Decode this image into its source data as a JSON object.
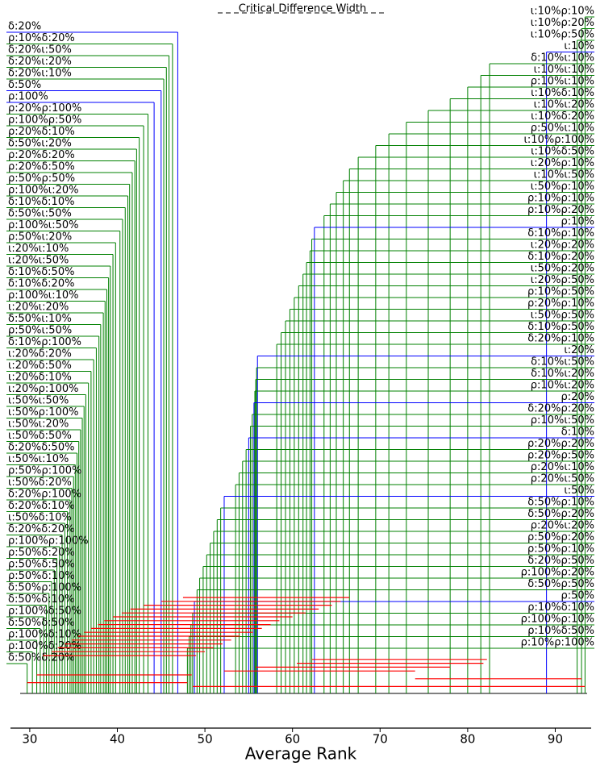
{
  "chart_data": {
    "type": "critical_difference",
    "title": "Critical Difference Width",
    "xlabel": "Average Rank",
    "xlim": [
      27.8,
      94.1
    ],
    "xticks": [
      30,
      40,
      50,
      60,
      70,
      80,
      90
    ],
    "left": [
      {
        "label": "δ:20%",
        "rank": 46.9,
        "color": "blue"
      },
      {
        "label": "ρ:10%δ:20%",
        "rank": 46.3,
        "color": "green"
      },
      {
        "label": "δ:20%ι:50%",
        "rank": 45.9,
        "color": "green"
      },
      {
        "label": "δ:20%ι:20%",
        "rank": 45.6,
        "color": "green"
      },
      {
        "label": "δ:20%ι:10%",
        "rank": 45.3,
        "color": "green"
      },
      {
        "label": "δ:50%",
        "rank": 45.0,
        "color": "blue"
      },
      {
        "label": "ρ:100%",
        "rank": 44.2,
        "color": "blue"
      },
      {
        "label": "ρ:20%ρ:100%",
        "rank": 43.5,
        "color": "green"
      },
      {
        "label": "ρ:100%ρ:50%",
        "rank": 43.0,
        "color": "green"
      },
      {
        "label": "ρ:20%δ:10%",
        "rank": 42.5,
        "color": "green"
      },
      {
        "label": "δ:50%ι:20%",
        "rank": 42.2,
        "color": "green"
      },
      {
        "label": "ρ:20%δ:20%",
        "rank": 42.0,
        "color": "green"
      },
      {
        "label": "ρ:20%δ:50%",
        "rank": 41.7,
        "color": "green"
      },
      {
        "label": "ρ:50%ρ:50%",
        "rank": 41.4,
        "color": "green"
      },
      {
        "label": "ρ:100%ι:20%",
        "rank": 41.2,
        "color": "green"
      },
      {
        "label": "δ:10%δ:10%",
        "rank": 40.9,
        "color": "green"
      },
      {
        "label": "δ:50%ι:50%",
        "rank": 40.6,
        "color": "green"
      },
      {
        "label": "ρ:100%ι:50%",
        "rank": 40.3,
        "color": "green"
      },
      {
        "label": "ρ:50%ι:20%",
        "rank": 39.8,
        "color": "green"
      },
      {
        "label": "ι:20%ι:10%",
        "rank": 39.5,
        "color": "green"
      },
      {
        "label": "ι:20%ι:50%",
        "rank": 39.2,
        "color": "green"
      },
      {
        "label": "δ:10%δ:50%",
        "rank": 39.0,
        "color": "green"
      },
      {
        "label": "δ:10%δ:20%",
        "rank": 38.8,
        "color": "green"
      },
      {
        "label": "ρ:100%ι:10%",
        "rank": 38.6,
        "color": "green"
      },
      {
        "label": "ι:20%ι:20%",
        "rank": 38.4,
        "color": "green"
      },
      {
        "label": "δ:50%ι:10%",
        "rank": 38.1,
        "color": "green"
      },
      {
        "label": "ρ:50%ι:50%",
        "rank": 37.9,
        "color": "green"
      },
      {
        "label": "δ:10%ρ:100%",
        "rank": 37.6,
        "color": "green"
      },
      {
        "label": "ι:20%δ:20%",
        "rank": 37.3,
        "color": "green"
      },
      {
        "label": "ι:20%δ:50%",
        "rank": 37.0,
        "color": "green"
      },
      {
        "label": "ι:20%δ:10%",
        "rank": 36.7,
        "color": "green"
      },
      {
        "label": "ι:20%ρ:100%",
        "rank": 36.4,
        "color": "green"
      },
      {
        "label": "ι:50%ι:50%",
        "rank": 36.2,
        "color": "green"
      },
      {
        "label": "ι:50%ρ:100%",
        "rank": 36.0,
        "color": "green"
      },
      {
        "label": "ι:50%ι:20%",
        "rank": 35.8,
        "color": "green"
      },
      {
        "label": "ι:50%δ:50%",
        "rank": 35.6,
        "color": "green"
      },
      {
        "label": "δ:20%δ:50%",
        "rank": 35.4,
        "color": "green"
      },
      {
        "label": "ι:50%ι:10%",
        "rank": 35.2,
        "color": "green"
      },
      {
        "label": "ρ:50%ρ:100%",
        "rank": 35.0,
        "color": "green"
      },
      {
        "label": "ι:50%δ:20%",
        "rank": 34.8,
        "color": "green"
      },
      {
        "label": "δ:20%ρ:100%",
        "rank": 34.6,
        "color": "green"
      },
      {
        "label": "δ:20%δ:10%",
        "rank": 34.3,
        "color": "green"
      },
      {
        "label": "ι:50%δ:10%",
        "rank": 34.0,
        "color": "green"
      },
      {
        "label": "δ:20%δ:20%",
        "rank": 33.7,
        "color": "green"
      },
      {
        "label": "ρ:100%ρ:100%",
        "rank": 33.4,
        "color": "green"
      },
      {
        "label": "ρ:50%δ:20%",
        "rank": 33.1,
        "color": "green"
      },
      {
        "label": "ρ:50%δ:50%",
        "rank": 32.8,
        "color": "green"
      },
      {
        "label": "ρ:50%δ:10%",
        "rank": 32.5,
        "color": "green"
      },
      {
        "label": "δ:50%ρ:100%",
        "rank": 32.2,
        "color": "green"
      },
      {
        "label": "δ:50%δ:10%",
        "rank": 31.9,
        "color": "green"
      },
      {
        "label": "ρ:100%δ:50%",
        "rank": 31.6,
        "color": "green"
      },
      {
        "label": "δ:50%δ:50%",
        "rank": 31.2,
        "color": "green"
      },
      {
        "label": "ρ:100%δ:10%",
        "rank": 30.8,
        "color": "green"
      },
      {
        "label": "ρ:100%δ:20%",
        "rank": 30.3,
        "color": "green"
      },
      {
        "label": "δ:50%δ:20%",
        "rank": 29.7,
        "color": "green"
      }
    ],
    "right": [
      {
        "label": "ι:10%ρ:10%",
        "rank": 93.4,
        "color": "green"
      },
      {
        "label": "ι:10%ρ:20%",
        "rank": 93.0,
        "color": "green"
      },
      {
        "label": "ι:10%ρ:50%",
        "rank": 92.5,
        "color": "green"
      },
      {
        "label": "ι:10%",
        "rank": 89.0,
        "color": "blue"
      },
      {
        "label": "δ:10%ι:10%",
        "rank": 82.5,
        "color": "green"
      },
      {
        "label": "ι:10%ι:10%",
        "rank": 81.5,
        "color": "green"
      },
      {
        "label": "ρ:10%ι:10%",
        "rank": 80.0,
        "color": "green"
      },
      {
        "label": "ι:10%δ:10%",
        "rank": 78.0,
        "color": "green"
      },
      {
        "label": "ι:10%ι:20%",
        "rank": 75.5,
        "color": "green"
      },
      {
        "label": "ι:10%δ:20%",
        "rank": 73.0,
        "color": "green"
      },
      {
        "label": "ρ:50%ι:10%",
        "rank": 71.0,
        "color": "green"
      },
      {
        "label": "ι:10%ρ:100%",
        "rank": 69.5,
        "color": "green"
      },
      {
        "label": "ι:10%δ:50%",
        "rank": 67.5,
        "color": "green"
      },
      {
        "label": "ι:20%ρ:10%",
        "rank": 66.5,
        "color": "green"
      },
      {
        "label": "ι:10%ι:50%",
        "rank": 65.8,
        "color": "green"
      },
      {
        "label": "ι:50%ρ:10%",
        "rank": 65.0,
        "color": "green"
      },
      {
        "label": "ρ:10%ρ:10%",
        "rank": 64.3,
        "color": "green"
      },
      {
        "label": "ρ:10%ρ:20%",
        "rank": 63.6,
        "color": "green"
      },
      {
        "label": "ρ:10%",
        "rank": 62.5,
        "color": "blue"
      },
      {
        "label": "δ:10%ρ:10%",
        "rank": 62.2,
        "color": "green"
      },
      {
        "label": "ι:20%ρ:20%",
        "rank": 62.0,
        "color": "green"
      },
      {
        "label": "δ:10%ρ:20%",
        "rank": 61.6,
        "color": "green"
      },
      {
        "label": "ι:50%ρ:20%",
        "rank": 61.2,
        "color": "green"
      },
      {
        "label": "ι:20%ρ:50%",
        "rank": 60.7,
        "color": "green"
      },
      {
        "label": "ρ:10%ρ:50%",
        "rank": 60.2,
        "color": "green"
      },
      {
        "label": "ρ:20%ρ:10%",
        "rank": 59.7,
        "color": "green"
      },
      {
        "label": "ι:50%ρ:50%",
        "rank": 59.2,
        "color": "green"
      },
      {
        "label": "δ:10%ρ:50%",
        "rank": 58.7,
        "color": "green"
      },
      {
        "label": "δ:20%ρ:10%",
        "rank": 58.2,
        "color": "green"
      },
      {
        "label": "ι:20%",
        "rank": 56.0,
        "color": "blue"
      },
      {
        "label": "δ:10%ι:50%",
        "rank": 55.9,
        "color": "green"
      },
      {
        "label": "δ:10%ι:20%",
        "rank": 55.8,
        "color": "green"
      },
      {
        "label": "ρ:10%ι:20%",
        "rank": 55.7,
        "color": "green"
      },
      {
        "label": "ρ:20%",
        "rank": 55.6,
        "color": "blue"
      },
      {
        "label": "δ:20%ρ:20%",
        "rank": 55.4,
        "color": "green"
      },
      {
        "label": "ρ:10%ι:50%",
        "rank": 55.2,
        "color": "green"
      },
      {
        "label": "δ:10%",
        "rank": 55.0,
        "color": "blue"
      },
      {
        "label": "ρ:20%ρ:20%",
        "rank": 54.7,
        "color": "green"
      },
      {
        "label": "ρ:20%ρ:50%",
        "rank": 54.3,
        "color": "green"
      },
      {
        "label": "ρ:20%ι:10%",
        "rank": 53.9,
        "color": "green"
      },
      {
        "label": "ρ:20%ι:50%",
        "rank": 53.5,
        "color": "green"
      },
      {
        "label": "ι:50%",
        "rank": 52.2,
        "color": "blue"
      },
      {
        "label": "δ:50%ρ:10%",
        "rank": 51.8,
        "color": "green"
      },
      {
        "label": "δ:50%ρ:20%",
        "rank": 51.4,
        "color": "green"
      },
      {
        "label": "ρ:20%ι:20%",
        "rank": 51.0,
        "color": "green"
      },
      {
        "label": "ρ:50%ρ:20%",
        "rank": 50.6,
        "color": "green"
      },
      {
        "label": "ρ:50%ρ:10%",
        "rank": 50.2,
        "color": "green"
      },
      {
        "label": "δ:20%ρ:50%",
        "rank": 49.8,
        "color": "green"
      },
      {
        "label": "ρ:100%ρ:20%",
        "rank": 49.4,
        "color": "green"
      },
      {
        "label": "δ:50%ρ:50%",
        "rank": 49.1,
        "color": "green"
      },
      {
        "label": "ρ:50%",
        "rank": 48.8,
        "color": "blue"
      },
      {
        "label": "ρ:10%δ:10%",
        "rank": 48.6,
        "color": "green"
      },
      {
        "label": "ρ:100%ρ:10%",
        "rank": 48.4,
        "color": "green"
      },
      {
        "label": "ρ:10%δ:50%",
        "rank": 48.2,
        "color": "green"
      },
      {
        "label": "ρ:10%ρ:100%",
        "rank": 48.0,
        "color": "green"
      }
    ],
    "clique_color": "red",
    "cliques": [
      [
        47.5,
        66.5
      ],
      [
        45.0,
        65.5
      ],
      [
        43.0,
        64.5
      ],
      [
        41.5,
        63.0
      ],
      [
        40.5,
        61.5
      ],
      [
        39.5,
        60.0
      ],
      [
        38.5,
        58.5
      ],
      [
        37.8,
        57.5
      ],
      [
        37.0,
        56.5
      ],
      [
        36.2,
        55.5
      ],
      [
        35.5,
        54.0
      ],
      [
        34.8,
        53.0
      ],
      [
        34.0,
        52.0
      ],
      [
        33.2,
        51.0
      ],
      [
        32.5,
        50.0
      ],
      [
        31.5,
        49.0
      ],
      [
        62.2,
        82.2
      ],
      [
        60.5,
        81.8
      ],
      [
        55.8,
        78.0
      ],
      [
        52.2,
        74.0
      ],
      [
        30.8,
        48.5
      ],
      [
        74.0,
        93.0
      ],
      [
        29.7,
        48.0
      ],
      [
        48.6,
        93.4
      ]
    ]
  }
}
